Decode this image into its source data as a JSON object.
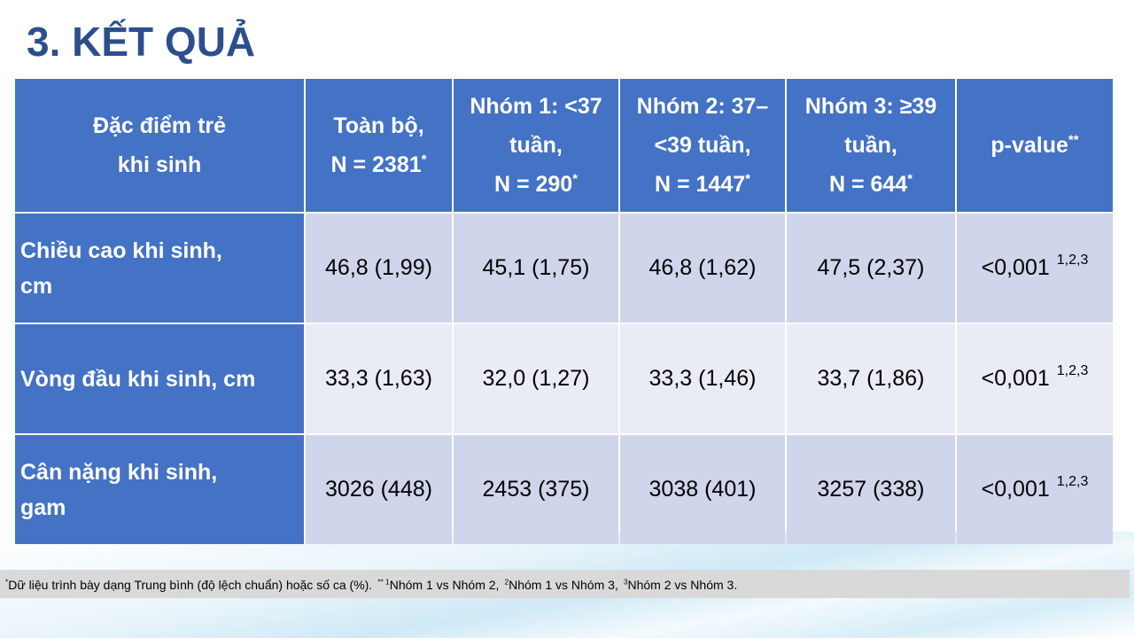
{
  "title": "3. KẾT QUẢ",
  "table": {
    "header": [
      {
        "lines": [
          "Đặc điểm trẻ",
          "khi sinh"
        ]
      },
      {
        "lines": [
          "Toàn bộ,",
          "N = 2381"
        ],
        "sup": "*"
      },
      {
        "lines": [
          "Nhóm 1: <37",
          "tuần,",
          "N = 290"
        ],
        "sup": "*"
      },
      {
        "lines": [
          "Nhóm 2: 37–",
          "<39 tuần,",
          "N = 1447"
        ],
        "sup": "*"
      },
      {
        "lines": [
          "Nhóm 3: ≥39",
          "tuần,",
          "N = 644"
        ],
        "sup": "*"
      },
      {
        "lines": [
          "p-value"
        ],
        "sup": "**"
      }
    ],
    "rows": [
      {
        "label": [
          "Chiều cao khi sinh,",
          "cm"
        ],
        "cells": [
          "46,8 (1,99)",
          "45,1 (1,75)",
          "46,8 (1,62)",
          "47,5 (2,37)"
        ],
        "p": {
          "text": "<0,001",
          "sup": "1,2,3"
        }
      },
      {
        "label": [
          "Vòng đầu khi sinh, cm"
        ],
        "cells": [
          "33,3 (1,63)",
          "32,0 (1,27)",
          "33,3 (1,46)",
          "33,7 (1,86)"
        ],
        "p": {
          "text": "<0,001",
          "sup": "1,2,3"
        }
      },
      {
        "label": [
          "Cân nặng khi sinh,",
          "gam"
        ],
        "cells": [
          "3026 (448)",
          "2453 (375)",
          "3038 (401)",
          "3257 (338)"
        ],
        "p": {
          "text": "<0,001",
          "sup": "1,2,3"
        }
      }
    ]
  },
  "footnote": [
    {
      "sup": "*"
    },
    {
      "text": "Dữ liệu trình bày dạng Trung bình (độ lệch chuẩn) hoặc số ca (%)."
    },
    {
      "sup": "** 1"
    },
    {
      "text": "Nhóm 1 vs Nhóm 2,"
    },
    {
      "sup": "2"
    },
    {
      "text": "Nhóm 1 vs Nhóm 3,"
    },
    {
      "sup": "3"
    },
    {
      "text": "Nhóm 2 vs Nhóm 3."
    }
  ]
}
